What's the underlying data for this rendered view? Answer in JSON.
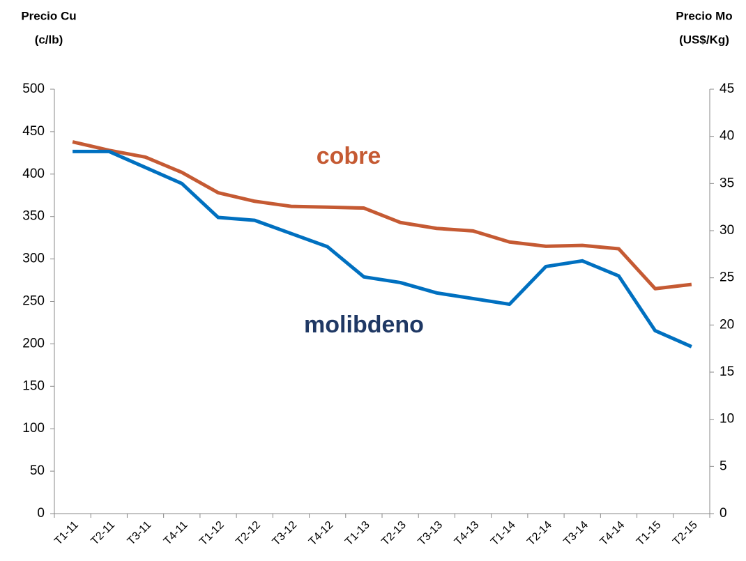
{
  "chart_data": {
    "type": "line",
    "y_label": [
      "Precio Cu",
      "(c/lb)"
    ],
    "y2_label": [
      "Precio Mo",
      "(US$/Kg)"
    ],
    "categories": [
      "T1-11",
      "T2-11",
      "T3-11",
      "T4-11",
      "T1-12",
      "T2-12",
      "T3-12",
      "T4-12",
      "T1-13",
      "T2-13",
      "T3-13",
      "T4-13",
      "T1-14",
      "T2-14",
      "T3-14",
      "T4-14",
      "T1-15",
      "T2-15"
    ],
    "series": [
      {
        "name": "cobre",
        "color": "#c55a33",
        "label_color": "#c55a33",
        "values": [
          438,
          428,
          420,
          402,
          378,
          368,
          362,
          361,
          360,
          343,
          336,
          333,
          320,
          315,
          316,
          312,
          265,
          270
        ]
      },
      {
        "name": "molibdeno",
        "color": "#0070c0",
        "label_color": "#1f3864",
        "axis": "y2",
        "values": [
          38.4,
          38.4,
          36.7,
          35.0,
          31.4,
          31.1,
          29.7,
          28.3,
          25.1,
          24.5,
          23.4,
          22.8,
          22.2,
          26.2,
          26.8,
          25.2,
          19.4,
          17.7
        ]
      }
    ],
    "ylim": [
      0,
      500
    ],
    "yticks": [
      0,
      50,
      100,
      150,
      200,
      250,
      300,
      350,
      400,
      450,
      500
    ],
    "y2lim": [
      0,
      45
    ],
    "y2ticks": [
      0,
      5,
      10,
      15,
      20,
      25,
      30,
      35,
      40,
      45
    ]
  }
}
